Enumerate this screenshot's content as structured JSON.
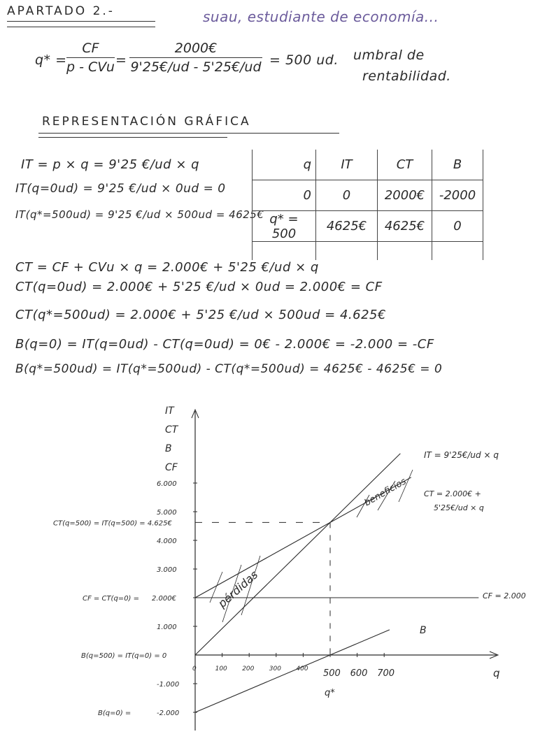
{
  "header": {
    "section_title": "APARTADO 2.-",
    "note": "suau, estudiante de economía..."
  },
  "breakeven": {
    "lhs": "q* =",
    "frac1_num": "CF",
    "frac1_den": "p - CVu",
    "eq": "=",
    "frac2_num": "2000€",
    "frac2_den": "9'25€/ud - 5'25€/ud",
    "result": "= 500 ud.",
    "label_line1": "umbral de",
    "label_line2": "rentabilidad."
  },
  "graph_title": "REPRESENTACIÓN GRÁFICA",
  "it_equations": [
    "IT = p × q = 9'25 €/ud × q",
    "IT(q=0ud) = 9'25 €/ud × 0ud = 0",
    "IT(q*=500ud) = 9'25 €/ud × 500ud = 4625€"
  ],
  "table": {
    "headers": [
      "q",
      "IT",
      "CT",
      "B"
    ],
    "rows": [
      [
        "0",
        "0",
        "2000€",
        "-2000"
      ],
      [
        "q* = 500",
        "4625€",
        "4625€",
        "0"
      ],
      [
        "",
        "",
        "",
        ""
      ]
    ]
  },
  "ct_equations": [
    "CT = CF + CVu × q = 2.000€ + 5'25 €/ud × q",
    "CT(q=0ud) = 2.000€ + 5'25 €/ud × 0ud = 2.000€ = CF",
    "CT(q*=500ud) = 2.000€ + 5'25 €/ud × 500ud = 4.625€",
    "B(q=0) = IT(q=0ud) - CT(q=0ud) = 0€ - 2.000€ = -2.000 = -CF",
    "B(q*=500ud) = IT(q*=500ud) - CT(q*=500ud) = 4625€ - 4625€ = 0"
  ],
  "chart_data": {
    "type": "line",
    "ylabel": [
      "IT",
      "CT",
      "B",
      "CF"
    ],
    "xlabel": "q",
    "x_ticks": [
      "0",
      "100",
      "200",
      "300",
      "400",
      "500",
      "600",
      "700"
    ],
    "y_ticks": [
      "6.000",
      "5.000",
      "4.000",
      "3.000",
      "2.000€",
      "1.000",
      "-1.000",
      "-2.000"
    ],
    "series": [
      {
        "name": "IT = 9'25€/ud × q",
        "intercept": 0,
        "slope": 9.25
      },
      {
        "name": "CT = 2.000€ + 5'25€/ud × q",
        "intercept": 2000,
        "slope": 5.25
      },
      {
        "name": "CF = 2.000",
        "intercept": 2000,
        "slope": 0
      },
      {
        "name": "B",
        "intercept": -2000,
        "slope": 4
      }
    ],
    "breakeven": {
      "q": 500,
      "value": 4625,
      "q_label": "q*"
    },
    "annotations": {
      "loss_region": "pérdidas",
      "profit_region": "beneficios",
      "y_4625": "CT(q=500) = IT(q=500) = 4.625€",
      "y_2000": "CF = CT(q=0) =",
      "y_0": "B(q=500) = IT(q=0) = 0",
      "y_m2000": "B(q=0) ="
    },
    "ct_label_line1": "CT = 2.000€ +",
    "ct_label_line2": "5'25€/ud × q",
    "ink_color": "#2a2a2a",
    "note_color": "#6c5c9c"
  }
}
